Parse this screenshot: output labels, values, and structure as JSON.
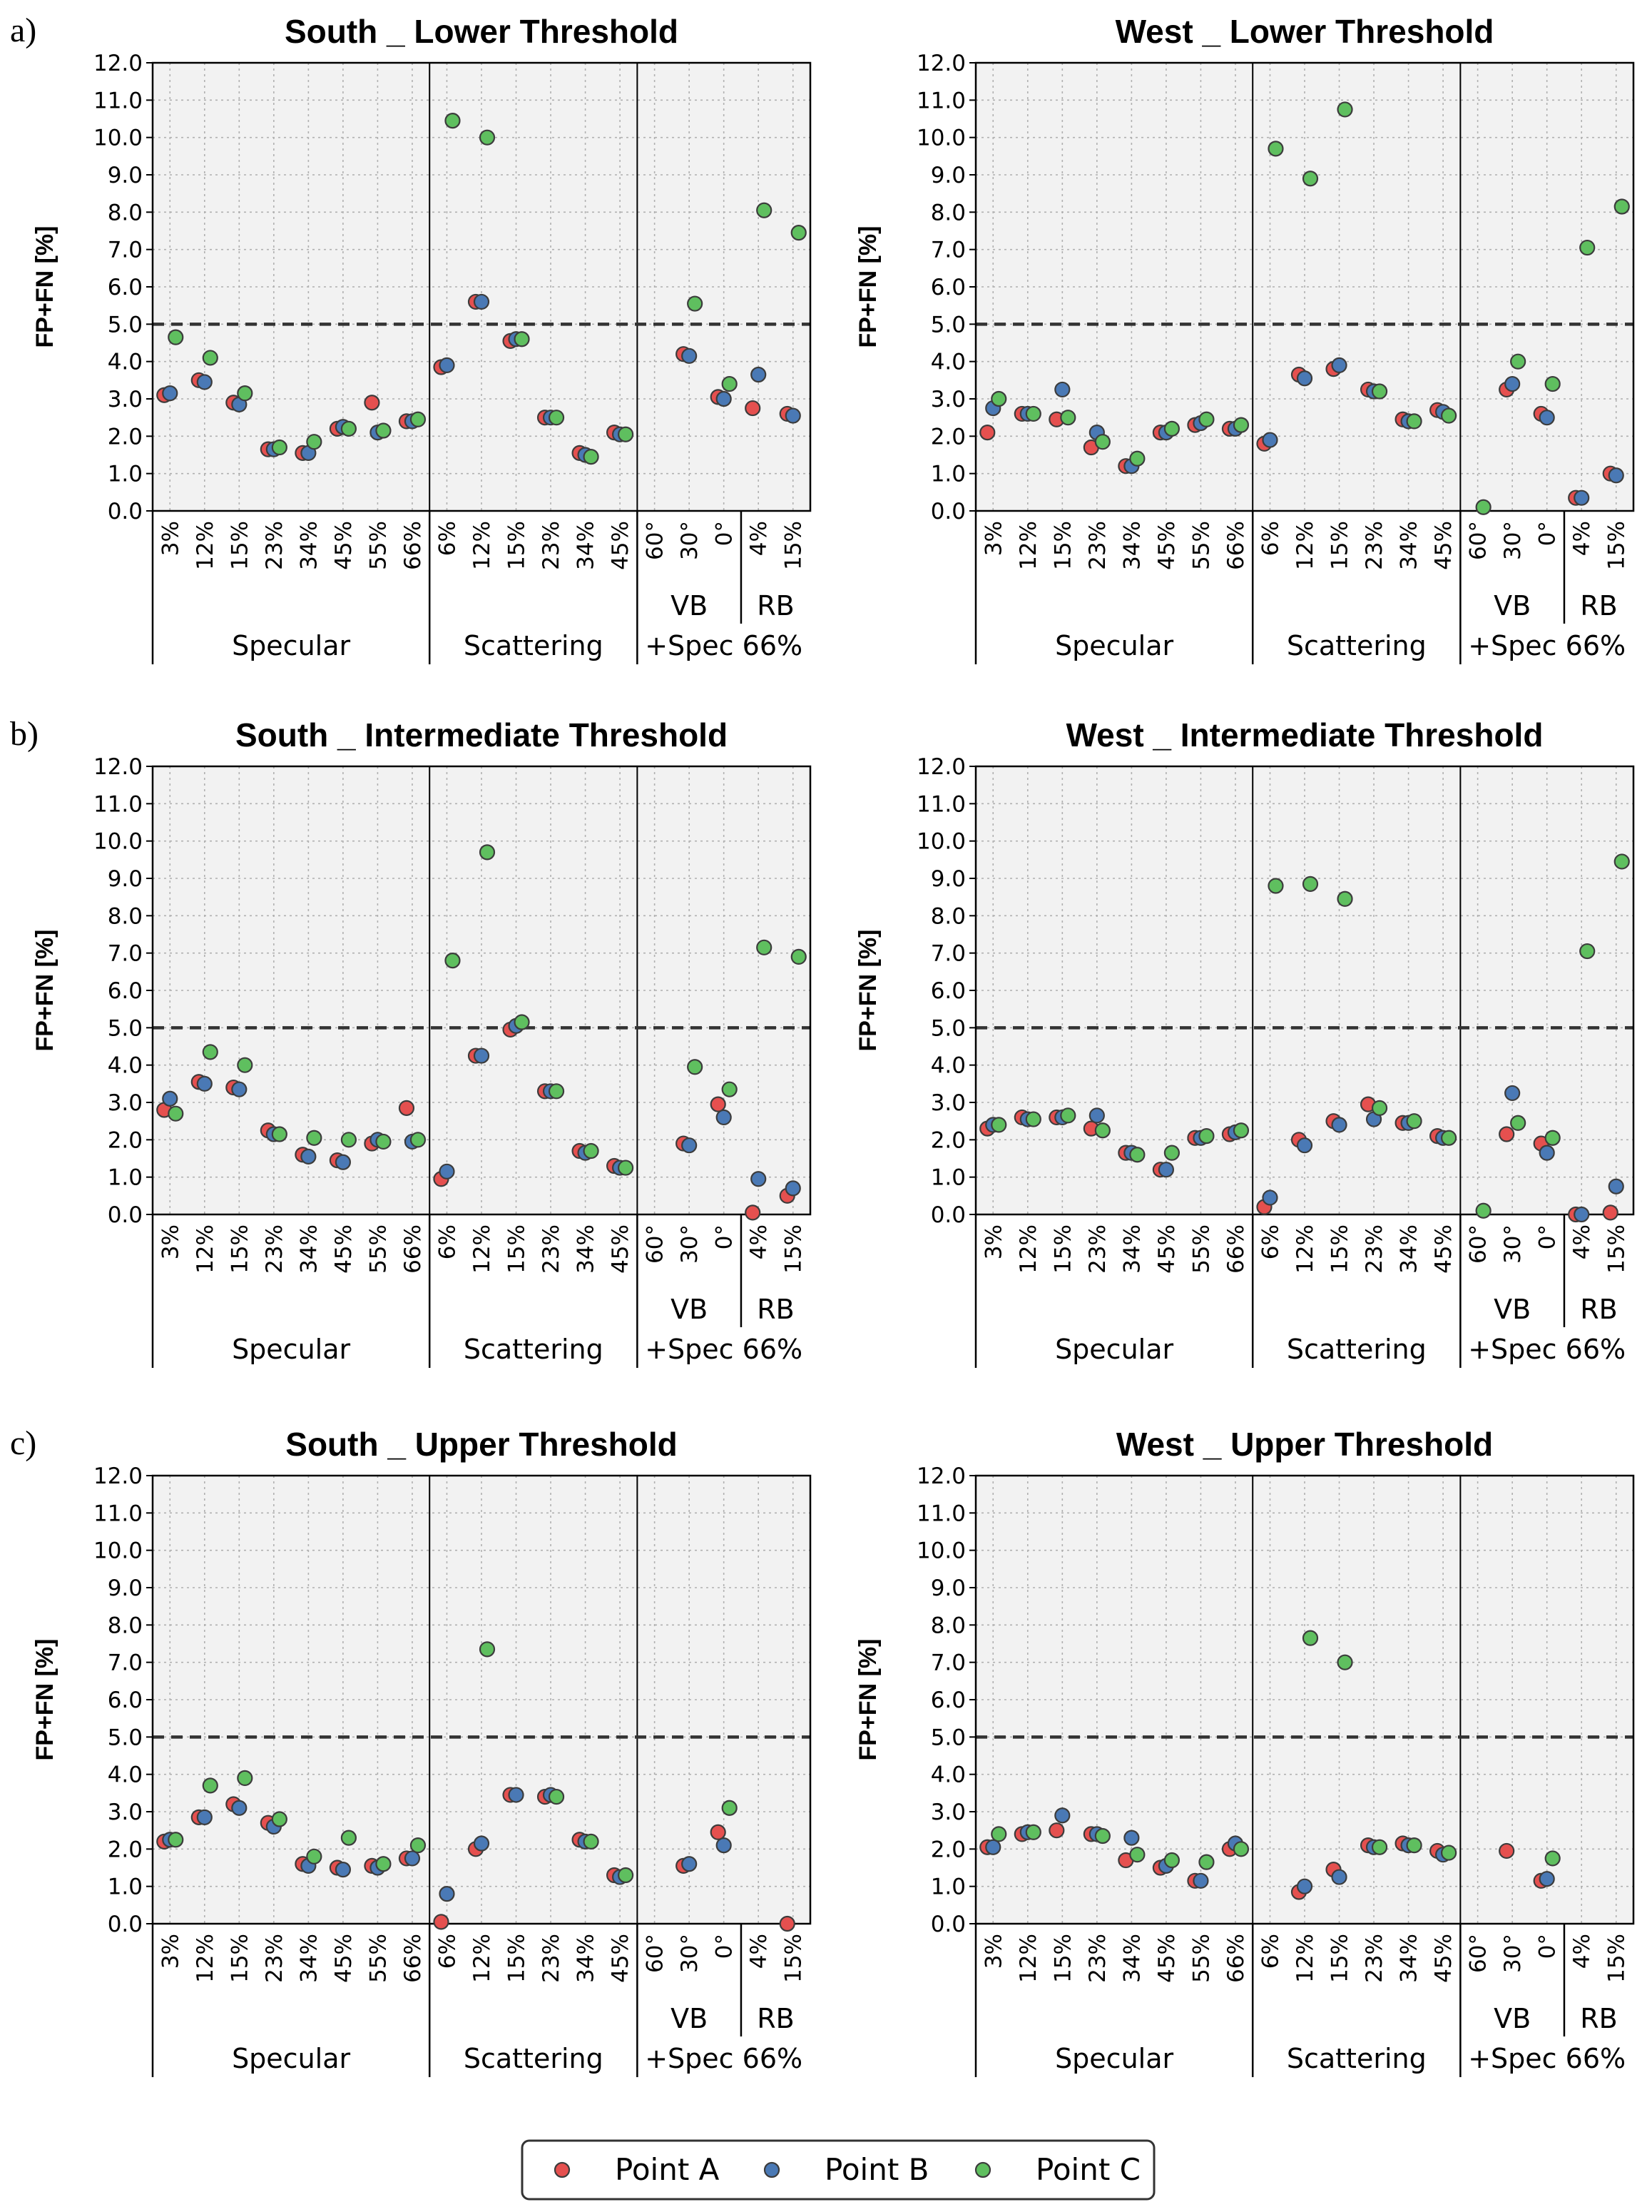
{
  "colors": {
    "point_a": "#e5504f",
    "point_b": "#4a79b5",
    "point_c": "#5fbf5f",
    "plot_bg": "#f2f2f2",
    "threshold_line": "#333333"
  },
  "rows": [
    {
      "label": "a)"
    },
    {
      "label": "b)"
    },
    {
      "label": "c)"
    }
  ],
  "legend": [
    {
      "label": "Point A",
      "color_key": "point_a"
    },
    {
      "label": "Point B",
      "color_key": "point_b"
    },
    {
      "label": "Point C",
      "color_key": "point_c"
    }
  ],
  "chart_data": {
    "type": "scatter",
    "ylabel": "FP+FN [%]",
    "ylim": [
      0,
      12
    ],
    "y_ticks": [
      "0.0",
      "1.0",
      "2.0",
      "3.0",
      "4.0",
      "5.0",
      "6.0",
      "7.0",
      "8.0",
      "9.0",
      "10.0",
      "11.0",
      "12.0"
    ],
    "threshold": 5.0,
    "categories": [
      "3%",
      "12%",
      "15%",
      "23%",
      "34%",
      "45%",
      "55%",
      "66%",
      "6%",
      "12%",
      "15%",
      "23%",
      "34%",
      "45%",
      "60°",
      "30°",
      "0°",
      "4%",
      "15%"
    ],
    "groups": [
      {
        "label": "Specular",
        "count": 8
      },
      {
        "label": "Scattering",
        "count": 6
      },
      {
        "label": "+Spec 66%",
        "count": 5
      }
    ],
    "subgroups": [
      {
        "label": "VB",
        "count": 3
      },
      {
        "label": "RB",
        "count": 2
      }
    ],
    "grid": true,
    "legend_position": "bottom-center",
    "panels": [
      {
        "title": "South _ Lower Threshold",
        "series": [
          {
            "name": "Point A",
            "values": [
              3.1,
              3.5,
              2.9,
              1.65,
              1.55,
              2.2,
              2.9,
              2.4,
              3.85,
              5.6,
              4.55,
              2.5,
              1.55,
              2.1,
              null,
              4.2,
              3.05,
              2.75,
              2.6
            ]
          },
          {
            "name": "Point B",
            "values": [
              3.15,
              3.45,
              2.85,
              1.65,
              1.55,
              2.25,
              2.1,
              2.4,
              3.9,
              5.6,
              4.6,
              2.5,
              1.5,
              2.05,
              null,
              4.15,
              3.0,
              3.65,
              2.55
            ]
          },
          {
            "name": "Point C",
            "values": [
              4.65,
              4.1,
              3.15,
              1.7,
              1.85,
              2.2,
              2.15,
              2.45,
              10.45,
              10.0,
              4.6,
              2.5,
              1.45,
              2.05,
              null,
              5.55,
              3.4,
              8.05,
              7.45
            ]
          }
        ]
      },
      {
        "title": "West _ Lower Threshold",
        "series": [
          {
            "name": "Point A",
            "values": [
              2.1,
              2.6,
              2.45,
              1.7,
              1.2,
              2.1,
              2.3,
              2.2,
              1.8,
              3.65,
              3.8,
              3.25,
              2.45,
              2.7,
              null,
              3.25,
              2.6,
              0.35,
              1.0
            ]
          },
          {
            "name": "Point B",
            "values": [
              2.75,
              2.6,
              3.25,
              2.1,
              1.2,
              2.1,
              2.35,
              2.2,
              1.9,
              3.55,
              3.9,
              3.2,
              2.4,
              2.65,
              null,
              3.4,
              2.5,
              0.35,
              0.95
            ]
          },
          {
            "name": "Point C",
            "values": [
              3.0,
              2.6,
              2.5,
              1.85,
              1.4,
              2.2,
              2.45,
              2.3,
              9.7,
              8.9,
              10.75,
              3.2,
              2.4,
              2.55,
              0.1,
              4.0,
              3.4,
              7.05,
              8.15
            ]
          }
        ]
      },
      {
        "title": "South _ Intermediate Threshold",
        "series": [
          {
            "name": "Point A",
            "values": [
              2.8,
              3.55,
              3.4,
              2.25,
              1.6,
              1.45,
              1.9,
              2.85,
              0.95,
              4.25,
              4.95,
              3.3,
              1.7,
              1.3,
              null,
              1.9,
              2.95,
              0.05,
              0.5
            ]
          },
          {
            "name": "Point B",
            "values": [
              3.1,
              3.5,
              3.35,
              2.15,
              1.55,
              1.4,
              2.0,
              1.95,
              1.15,
              4.25,
              5.05,
              3.3,
              1.65,
              1.25,
              null,
              1.85,
              2.6,
              0.95,
              0.7
            ]
          },
          {
            "name": "Point C",
            "values": [
              2.7,
              4.35,
              4.0,
              2.15,
              2.05,
              2.0,
              1.95,
              2.0,
              6.8,
              9.7,
              5.15,
              3.3,
              1.7,
              1.25,
              null,
              3.95,
              3.35,
              7.15,
              6.9
            ]
          }
        ]
      },
      {
        "title": "West _ Intermediate Threshold",
        "series": [
          {
            "name": "Point A",
            "values": [
              2.3,
              2.6,
              2.6,
              2.3,
              1.65,
              1.2,
              2.05,
              2.15,
              0.2,
              2.0,
              2.5,
              2.95,
              2.45,
              2.1,
              null,
              2.15,
              1.9,
              0.0,
              0.05
            ]
          },
          {
            "name": "Point B",
            "values": [
              2.4,
              2.55,
              2.6,
              2.65,
              1.65,
              1.2,
              2.05,
              2.2,
              0.45,
              1.85,
              2.4,
              2.55,
              2.45,
              2.05,
              null,
              3.25,
              1.65,
              0.0,
              0.75
            ]
          },
          {
            "name": "Point C",
            "values": [
              2.4,
              2.55,
              2.65,
              2.25,
              1.6,
              1.65,
              2.1,
              2.25,
              8.8,
              8.85,
              8.45,
              2.85,
              2.5,
              2.05,
              0.1,
              2.45,
              2.05,
              7.05,
              9.45
            ]
          }
        ]
      },
      {
        "title": "South _ Upper Threshold",
        "series": [
          {
            "name": "Point A",
            "values": [
              2.2,
              2.85,
              3.2,
              2.7,
              1.6,
              1.5,
              1.55,
              1.75,
              0.05,
              2.0,
              3.45,
              3.4,
              2.25,
              1.3,
              null,
              1.55,
              2.45,
              null,
              0.0
            ]
          },
          {
            "name": "Point B",
            "values": [
              2.25,
              2.85,
              3.1,
              2.6,
              1.55,
              1.45,
              1.5,
              1.75,
              0.8,
              2.15,
              3.45,
              3.45,
              2.2,
              1.25,
              null,
              1.6,
              2.1,
              null,
              null
            ]
          },
          {
            "name": "Point C",
            "values": [
              2.25,
              3.7,
              3.9,
              2.8,
              1.8,
              2.3,
              1.6,
              2.1,
              null,
              7.35,
              null,
              3.4,
              2.2,
              1.3,
              null,
              null,
              3.1,
              null,
              null
            ]
          }
        ]
      },
      {
        "title": "West _ Upper Threshold",
        "series": [
          {
            "name": "Point A",
            "values": [
              2.05,
              2.4,
              2.5,
              2.4,
              1.7,
              1.5,
              1.15,
              2.0,
              null,
              0.85,
              1.45,
              2.1,
              2.15,
              1.95,
              null,
              1.95,
              1.15,
              null,
              null
            ]
          },
          {
            "name": "Point B",
            "values": [
              2.05,
              2.45,
              2.9,
              2.4,
              2.3,
              1.55,
              1.15,
              2.15,
              null,
              1.0,
              1.25,
              2.05,
              2.1,
              1.85,
              null,
              null,
              1.2,
              null,
              null
            ]
          },
          {
            "name": "Point C",
            "values": [
              2.4,
              2.45,
              null,
              2.35,
              1.85,
              1.7,
              1.65,
              2.0,
              null,
              7.65,
              7.0,
              2.05,
              2.1,
              1.9,
              null,
              null,
              1.75,
              null,
              null
            ]
          }
        ]
      }
    ]
  }
}
